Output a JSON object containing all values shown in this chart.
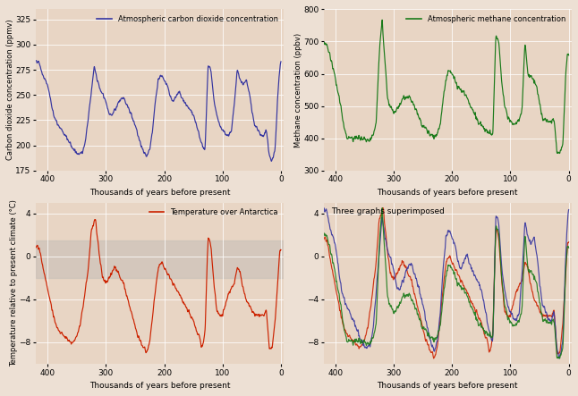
{
  "title_co2": "Atmospheric carbon dioxide concentration",
  "title_ch4": "Atmospheric methane concentration",
  "title_temp": "Temperature over Antarctica",
  "title_super": "Three graphs superimposed",
  "ylabel_co2": "Carbon dioxide concentration (ppmv)",
  "ylabel_ch4": "Methane concentration (ppbv)",
  "ylabel_temp": "Temperature relative to present climate (°C)",
  "xlabel": "Thousands of years before present",
  "co2_color": "#3535a0",
  "ch4_color": "#1a7a1a",
  "temp_color": "#cc2200",
  "bg_color": "#e8d5c4",
  "fig_bg": "#ede0d4",
  "co2_ylim": [
    175,
    335
  ],
  "ch4_ylim": [
    300,
    800
  ],
  "temp_ylim": [
    -10,
    5
  ],
  "co2_yticks": [
    175,
    200,
    225,
    250,
    275,
    300,
    325
  ],
  "ch4_yticks": [
    300,
    400,
    500,
    600,
    700,
    800
  ],
  "temp_yticks": [
    -8,
    -4,
    0,
    4
  ],
  "xlim": [
    420,
    -5
  ],
  "xticks": [
    400,
    300,
    200,
    100,
    0
  ],
  "temp_shade_color": "#c8bfb8",
  "temp_shade_alpha": 0.6
}
